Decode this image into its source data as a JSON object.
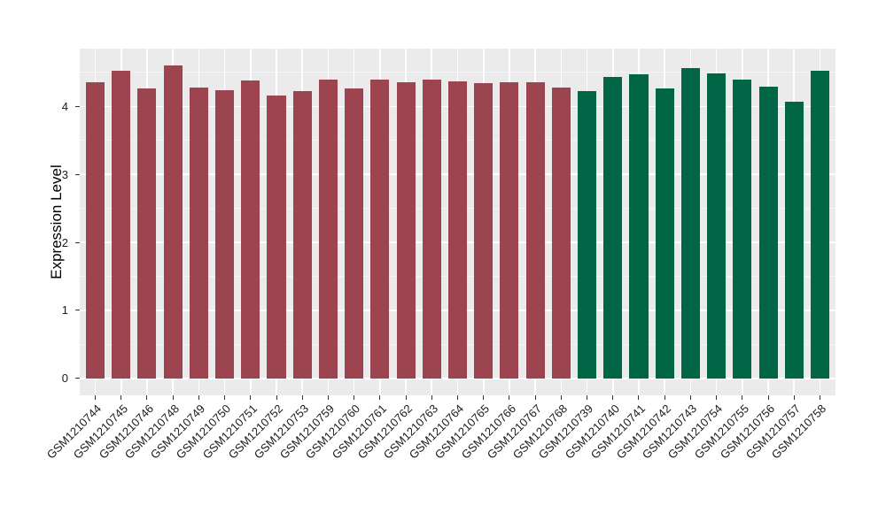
{
  "figure": {
    "background": "#FFFFFF",
    "panel_background": "#EBEBEB",
    "grid_major_color": "#FFFFFF",
    "grid_minor_color": "#F5F5F5",
    "axis_text_color": "#1A1A1A",
    "tick_mark_color": "#333333"
  },
  "chart_data": {
    "type": "bar",
    "title": "",
    "xlabel": "",
    "ylabel": "Expression Level",
    "categories": [
      "GSM1210744",
      "GSM1210745",
      "GSM1210746",
      "GSM1210748",
      "GSM1210749",
      "GSM1210750",
      "GSM1210751",
      "GSM1210752",
      "GSM1210753",
      "GSM1210759",
      "GSM1210760",
      "GSM1210761",
      "GSM1210762",
      "GSM1210763",
      "GSM1210764",
      "GSM1210765",
      "GSM1210766",
      "GSM1210767",
      "GSM1210768",
      "GSM1210739",
      "GSM1210740",
      "GSM1210741",
      "GSM1210742",
      "GSM1210743",
      "GSM1210754",
      "GSM1210755",
      "GSM1210756",
      "GSM1210757",
      "GSM1210758"
    ],
    "values": [
      4.35,
      4.53,
      4.27,
      4.6,
      4.28,
      4.24,
      4.38,
      4.16,
      4.22,
      4.4,
      4.27,
      4.39,
      4.36,
      4.4,
      4.37,
      4.34,
      4.35,
      4.35,
      4.28,
      4.22,
      4.44,
      4.47,
      4.26,
      4.56,
      4.48,
      4.39,
      4.29,
      4.07,
      4.53
    ],
    "groups": {
      "left": {
        "color": "#9C4450",
        "count": 19
      },
      "right": {
        "color": "#006646",
        "count": 10
      }
    },
    "yticks": [
      0,
      1,
      2,
      3,
      4
    ],
    "ylim": [
      -0.25,
      4.85
    ],
    "grid": "major+minor-horizontal, major-vertical-at-categories",
    "legend": "none",
    "bar_width_fraction": 0.72,
    "x_label_angle_deg": 45
  }
}
